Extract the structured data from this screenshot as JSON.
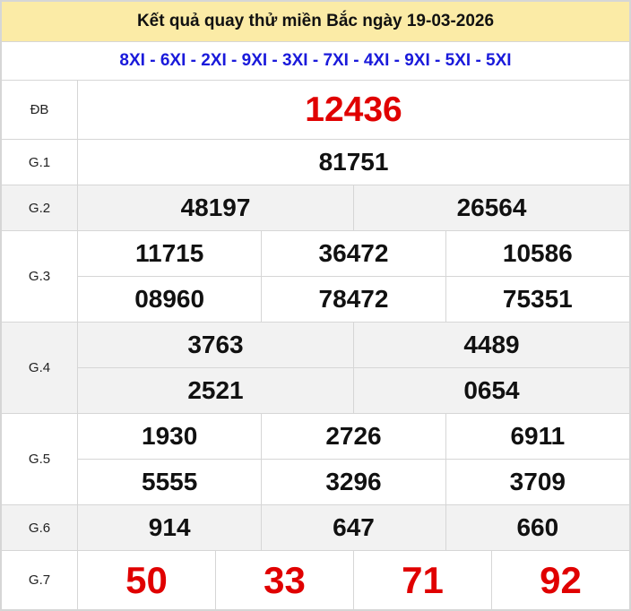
{
  "title": "Kết quả quay thử miền Bắc ngày 19-03-2026",
  "codes": "8XI - 6XI - 2XI - 9XI - 3XI - 7XI - 4XI - 9XI - 5XI - 5XI",
  "colors": {
    "header_bg": "#fbeba6",
    "codes": "#1a1adb",
    "highlight": "#e00000",
    "alt_row": "#f2f2f2"
  },
  "prizes": {
    "db": {
      "label": "ĐB",
      "numbers": [
        "12436"
      ]
    },
    "g1": {
      "label": "G.1",
      "numbers": [
        "81751"
      ]
    },
    "g2": {
      "label": "G.2",
      "numbers": [
        "48197",
        "26564"
      ]
    },
    "g3": {
      "label": "G.3",
      "numbers": [
        "11715",
        "36472",
        "10586",
        "08960",
        "78472",
        "75351"
      ]
    },
    "g4": {
      "label": "G.4",
      "numbers": [
        "3763",
        "4489",
        "2521",
        "0654"
      ]
    },
    "g5": {
      "label": "G.5",
      "numbers": [
        "1930",
        "2726",
        "6911",
        "5555",
        "3296",
        "3709"
      ]
    },
    "g6": {
      "label": "G.6",
      "numbers": [
        "914",
        "647",
        "660"
      ]
    },
    "g7": {
      "label": "G.7",
      "numbers": [
        "50",
        "33",
        "71",
        "92"
      ]
    }
  }
}
